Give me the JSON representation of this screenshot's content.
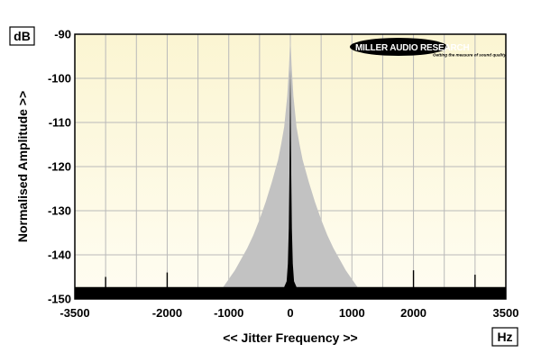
{
  "chart_data": {
    "type": "area",
    "x_unit": "Hz",
    "y_unit": "dB",
    "xlabel": "<< Jitter Frequency >>",
    "ylabel": "Normalised Amplitude >>",
    "xlim": [
      -3500,
      3500
    ],
    "ylim": [
      -150,
      -90
    ],
    "x_ticks": [
      -3500,
      -2000,
      -1000,
      0,
      1000,
      2000,
      3500
    ],
    "y_ticks": [
      -90,
      -100,
      -110,
      -120,
      -130,
      -140,
      -150
    ],
    "grid": true,
    "brand": {
      "name": "MILLER AUDIO RESEARCH",
      "tagline": "Getting the measure of sound quality"
    },
    "series": [
      {
        "color": "#c2c2c2",
        "x": [
          -3500,
          -2000,
          -1100,
          -1000,
          -900,
          -800,
          -700,
          -600,
          -500,
          -400,
          -300,
          -200,
          -150,
          -100,
          -50,
          -20,
          0,
          20,
          50,
          100,
          150,
          200,
          300,
          400,
          500,
          600,
          700,
          800,
          900,
          1000,
          1100,
          2000,
          3500
        ],
        "y": [
          -147.5,
          -147.5,
          -147.5,
          -145.5,
          -143.5,
          -141,
          -138.5,
          -135.5,
          -132,
          -128,
          -123.5,
          -118.5,
          -115,
          -111,
          -104,
          -97,
          -90,
          -97,
          -104,
          -111,
          -115,
          -118.5,
          -123.5,
          -128,
          -132,
          -135.5,
          -138.5,
          -141,
          -143.5,
          -145.5,
          -147.5,
          -147.5,
          -147.5
        ]
      },
      {
        "color": "#000000",
        "x": [
          -3500,
          -1000,
          -100,
          -60,
          -40,
          -25,
          -15,
          -5,
          0,
          5,
          15,
          25,
          40,
          60,
          100,
          1000,
          3500
        ],
        "y": [
          -147.3,
          -147.3,
          -147.3,
          -146,
          -142,
          -134,
          -122,
          -104,
          -98,
          -104,
          -122,
          -134,
          -142,
          -146,
          -147.3,
          -147.3,
          -147.3
        ]
      }
    ],
    "spurs": [
      {
        "x": -2000,
        "y": -144
      },
      {
        "x": 2000,
        "y": -143.5
      },
      {
        "x": 3000,
        "y": -144.5
      },
      {
        "x": -3000,
        "y": -145
      }
    ]
  }
}
